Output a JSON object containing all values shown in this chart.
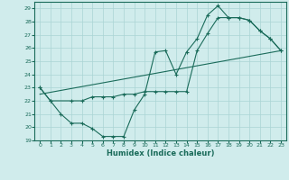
{
  "xlabel": "Humidex (Indice chaleur)",
  "bg_color": "#d0ecec",
  "grid_color": "#aad4d4",
  "line_color": "#1a6b5a",
  "xlim": [
    -0.5,
    23.5
  ],
  "ylim": [
    19,
    29.5
  ],
  "xticks": [
    0,
    1,
    2,
    3,
    4,
    5,
    6,
    7,
    8,
    9,
    10,
    11,
    12,
    13,
    14,
    15,
    16,
    17,
    18,
    19,
    20,
    21,
    22,
    23
  ],
  "yticks": [
    19,
    20,
    21,
    22,
    23,
    24,
    25,
    26,
    27,
    28,
    29
  ],
  "line1_x": [
    0,
    1,
    2,
    3,
    4,
    5,
    6,
    7,
    8,
    9,
    10,
    11,
    12,
    13,
    14,
    15,
    16,
    17,
    18,
    19,
    20,
    21,
    22,
    23
  ],
  "line1_y": [
    23,
    22,
    21,
    20.3,
    20.3,
    19.9,
    19.3,
    19.3,
    19.3,
    21.3,
    22.5,
    25.7,
    25.8,
    24,
    25.7,
    26.7,
    28.5,
    29.2,
    28.3,
    28.3,
    28.1,
    27.3,
    26.7,
    25.8
  ],
  "line2_x": [
    0,
    1,
    3,
    4,
    5,
    6,
    7,
    8,
    9,
    10,
    11,
    12,
    13,
    14,
    15,
    16,
    17,
    18,
    19,
    20,
    21,
    22,
    23
  ],
  "line2_y": [
    23,
    22,
    22,
    22,
    22.3,
    22.3,
    22.3,
    22.5,
    22.5,
    22.7,
    22.7,
    22.7,
    22.7,
    22.7,
    25.8,
    27.1,
    28.3,
    28.3,
    28.3,
    28.1,
    27.3,
    26.7,
    25.8
  ],
  "line3_x": [
    0,
    23
  ],
  "line3_y": [
    22.5,
    25.8
  ]
}
